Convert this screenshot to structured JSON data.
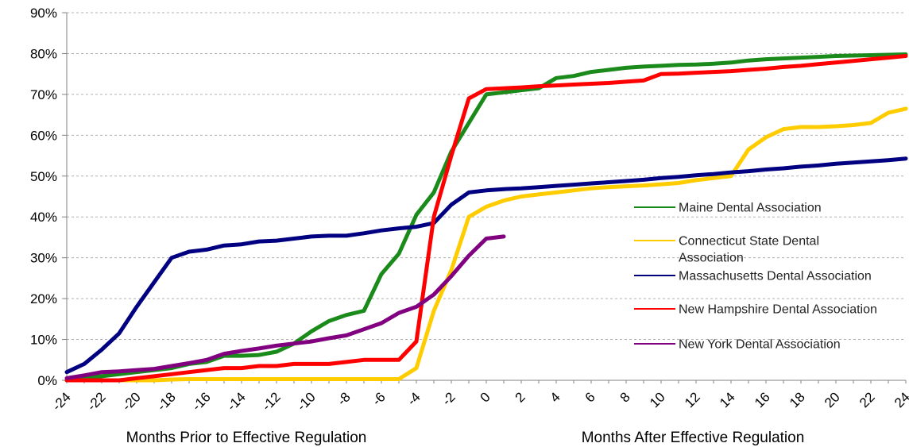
{
  "chart_data": {
    "type": "line",
    "xlabel_left": "Months Prior to Effective Regulation",
    "xlabel_right": "Months After Effective Regulation",
    "ylabel": "",
    "xlim": [
      -24,
      24
    ],
    "ylim": [
      0,
      90
    ],
    "x_ticks": [
      "-24",
      "-22",
      "-20",
      "-18",
      "-16",
      "-14",
      "-12",
      "-10",
      "-8",
      "-6",
      "-4",
      "-2",
      "0",
      "2",
      "4",
      "6",
      "8",
      "10",
      "12",
      "14",
      "16",
      "18",
      "20",
      "22",
      "24"
    ],
    "y_ticks": [
      "0%",
      "10%",
      "20%",
      "30%",
      "40%",
      "50%",
      "60%",
      "70%",
      "80%",
      "90%"
    ],
    "grid": "horizontal dashed",
    "legend_position": "right",
    "series": [
      {
        "name": "Maine Dental Association",
        "color": "#1a8a1a",
        "x": [
          -24,
          -23,
          -22,
          -21,
          -20,
          -19,
          -18,
          -17,
          -16,
          -15,
          -14,
          -13,
          -12,
          -11,
          -10,
          -9,
          -8,
          -7,
          -6,
          -5,
          -4,
          -3,
          -2,
          -1,
          0,
          1,
          2,
          3,
          4,
          5,
          6,
          7,
          8,
          9,
          10,
          11,
          12,
          13,
          14,
          15,
          16,
          17,
          18,
          19,
          20,
          21,
          22,
          23,
          24
        ],
        "y": [
          0,
          0.5,
          1,
          1.5,
          2,
          2.5,
          3,
          4,
          4.5,
          6,
          6,
          6.2,
          7,
          9,
          12,
          14.5,
          16,
          17,
          26,
          31,
          40.5,
          46,
          56,
          63,
          70,
          70.5,
          71,
          71.5,
          74,
          74.5,
          75.5,
          76,
          76.5,
          76.8,
          77,
          77.2,
          77.3,
          77.5,
          77.8,
          78.3,
          78.6,
          78.8,
          79,
          79.2,
          79.4,
          79.5,
          79.6,
          79.7,
          79.8
        ]
      },
      {
        "name": "Connecticut State Dental Association",
        "color": "#ffcc00",
        "x": [
          -24,
          -23,
          -22,
          -21,
          -20,
          -19,
          -18,
          -17,
          -16,
          -15,
          -14,
          -13,
          -12,
          -11,
          -10,
          -9,
          -8,
          -7,
          -6,
          -5,
          -4,
          -3,
          -2,
          -1,
          0,
          1,
          2,
          3,
          4,
          5,
          6,
          7,
          8,
          9,
          10,
          11,
          12,
          13,
          14,
          15,
          16,
          17,
          18,
          19,
          20,
          21,
          22,
          23,
          24
        ],
        "y": [
          0,
          0,
          0,
          0,
          0,
          0,
          0.2,
          0.3,
          0.3,
          0.3,
          0.3,
          0.3,
          0.3,
          0.3,
          0.3,
          0.3,
          0.3,
          0.3,
          0.3,
          0.3,
          3,
          17,
          27,
          40,
          42.5,
          44,
          45,
          45.5,
          46,
          46.5,
          47,
          47.3,
          47.5,
          47.7,
          48,
          48.3,
          49,
          49.5,
          50,
          56.5,
          59.5,
          61.5,
          62,
          62,
          62.2,
          62.5,
          63,
          65.5,
          66.5
        ]
      },
      {
        "name": "Massachusetts Dental Association",
        "color": "#000080",
        "x": [
          -24,
          -23,
          -22,
          -21,
          -20,
          -19,
          -18,
          -17,
          -16,
          -15,
          -14,
          -13,
          -12,
          -11,
          -10,
          -9,
          -8,
          -7,
          -6,
          -5,
          -4,
          -3,
          -2,
          -1,
          0,
          1,
          2,
          3,
          4,
          5,
          6,
          7,
          8,
          9,
          10,
          11,
          12,
          13,
          14,
          15,
          16,
          17,
          18,
          19,
          20,
          21,
          22,
          23,
          24
        ],
        "y": [
          2,
          4,
          7.5,
          11.5,
          18,
          24,
          30,
          31.5,
          32,
          33,
          33.3,
          34,
          34.2,
          34.7,
          35.2,
          35.4,
          35.4,
          36,
          36.7,
          37.2,
          37.6,
          38.5,
          43,
          46,
          46.5,
          46.8,
          47,
          47.3,
          47.6,
          47.9,
          48.2,
          48.5,
          48.8,
          49.1,
          49.5,
          49.8,
          50.2,
          50.5,
          50.9,
          51.2,
          51.6,
          51.9,
          52.3,
          52.6,
          53,
          53.3,
          53.6,
          53.9,
          54.3
        ]
      },
      {
        "name": "New Hampshire Dental Association",
        "color": "#ff0000",
        "x": [
          -24,
          -23,
          -22,
          -21,
          -20,
          -19,
          -18,
          -17,
          -16,
          -15,
          -14,
          -13,
          -12,
          -11,
          -10,
          -9,
          -8,
          -7,
          -6,
          -5,
          -4,
          -3,
          -2,
          -1,
          0,
          1,
          2,
          3,
          4,
          5,
          6,
          7,
          8,
          9,
          10,
          11,
          12,
          13,
          14,
          15,
          16,
          17,
          18,
          19,
          20,
          21,
          22,
          23,
          24
        ],
        "y": [
          0,
          0,
          0,
          0,
          0.5,
          1,
          1.5,
          2,
          2.5,
          3,
          3,
          3.5,
          3.5,
          4,
          4,
          4,
          4.5,
          5,
          5,
          5,
          9.5,
          40,
          55,
          69,
          71.3,
          71.5,
          71.7,
          72,
          72.2,
          72.4,
          72.6,
          72.8,
          73.1,
          73.4,
          75,
          75.1,
          75.3,
          75.5,
          75.7,
          76,
          76.3,
          76.7,
          77,
          77.4,
          77.8,
          78.2,
          78.6,
          79,
          79.4
        ]
      },
      {
        "name": "New York Dental Association",
        "color": "#800080",
        "x": [
          -24,
          -23,
          -22,
          -21,
          -20,
          -19,
          -18,
          -17,
          -16,
          -15,
          -14,
          -13,
          -12,
          -11,
          -10,
          -9,
          -8,
          -7,
          -6,
          -5,
          -4,
          -3,
          -2,
          -1,
          0,
          1
        ],
        "y": [
          0.5,
          1.2,
          2,
          2.2,
          2.5,
          2.8,
          3.5,
          4.2,
          5,
          6.5,
          7.2,
          7.8,
          8.5,
          9,
          9.5,
          10.3,
          11,
          12.5,
          14,
          16.5,
          18,
          21,
          25.5,
          30.5,
          34.7,
          35.2
        ]
      }
    ]
  }
}
